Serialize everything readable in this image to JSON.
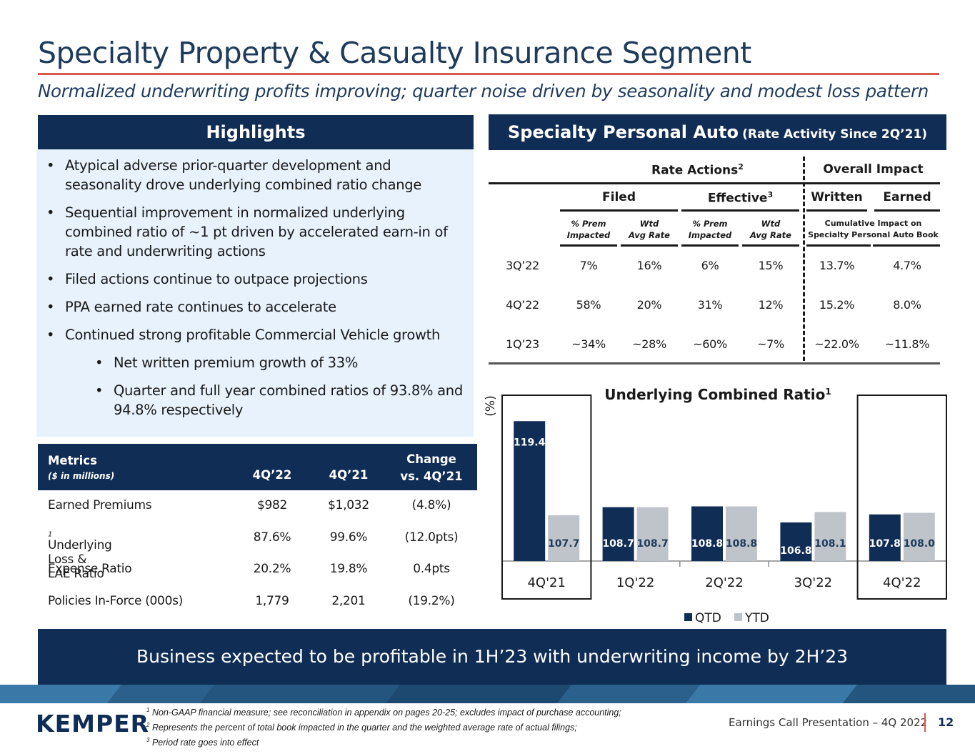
{
  "header": {
    "title": "Specialty Property & Casualty Insurance Segment",
    "subtitle": "Normalized underwriting profits improving; quarter noise driven by seasonality and modest loss pattern"
  },
  "highlights": {
    "heading": "Highlights",
    "items": [
      "Atypical adverse prior-quarter development and seasonality drove underlying combined ratio change",
      "Sequential improvement in normalized underlying combined ratio of ~1 pt driven by accelerated earn-in of rate and underwriting actions",
      "Filed actions continue to outpace projections",
      "PPA earned rate continues to accelerate",
      "Continued strong profitable Commercial Vehicle growth"
    ],
    "sub_items": [
      "Net written premium growth of 33%",
      "Quarter and full year combined ratios of 93.8% and 94.8% respectively"
    ]
  },
  "metrics": {
    "head_label": "Metrics",
    "head_sub": "($ in millions)",
    "col1": "4Q’22",
    "col2": "4Q’21",
    "col3_line1": "Change",
    "col3_line2": "vs. 4Q’21",
    "rows": [
      {
        "label": "Earned Premiums",
        "sup": "",
        "v1": "$982",
        "v2": "$1,032",
        "v3": "(4.8%)"
      },
      {
        "label": "Underlying Loss & LAE Ratio",
        "sup": "1",
        "v1": "87.6%",
        "v2": "99.6%",
        "v3": "(12.0pts)"
      },
      {
        "label": "Expense Ratio",
        "sup": "",
        "v1": "20.2%",
        "v2": "19.8%",
        "v3": "0.4pts"
      },
      {
        "label": "Policies In-Force (000s)",
        "sup": "",
        "v1": "1,779",
        "v2": "2,201",
        "v3": "(19.2%)"
      }
    ]
  },
  "spa": {
    "heading": "Specialty Personal Auto",
    "heading_small": "(Rate Activity Since 2Q’21)",
    "rate_actions": "Rate Actions",
    "rate_actions_sup": "2",
    "overall_impact": "Overall Impact",
    "filed": "Filed",
    "effective": "Effective",
    "effective_sup": "3",
    "written": "Written",
    "earned": "Earned",
    "sub_prem_1": "% Prem",
    "sub_prem_2": "Impacted",
    "sub_wtd_1": "Wtd",
    "sub_wtd_2": "Avg Rate",
    "cum_1": "Cumulative Impact on",
    "cum_2": "Specialty Personal Auto Book",
    "rows": [
      {
        "q": "3Q’22",
        "fp": "7%",
        "fw": "16%",
        "ep": "6%",
        "ew": "15%",
        "wr": "13.7%",
        "ea": "4.7%"
      },
      {
        "q": "4Q’22",
        "fp": "58%",
        "fw": "20%",
        "ep": "31%",
        "ew": "12%",
        "wr": "15.2%",
        "ea": "8.0%"
      },
      {
        "q": "1Q’23",
        "fp": "~34%",
        "fw": "~28%",
        "ep": "~60%",
        "ew": "~7%",
        "wr": "~22.0%",
        "ea": "~11.8%"
      }
    ]
  },
  "chart_data": {
    "type": "bar",
    "title": "Underlying Combined Ratio",
    "title_sup": "1",
    "ylabel": "(%)",
    "categories": [
      "4Q'21",
      "1Q'22",
      "2Q'22",
      "3Q'22",
      "4Q'22"
    ],
    "series": [
      {
        "name": "QTD",
        "color": "#102d56",
        "values": [
          119.4,
          108.7,
          108.8,
          106.8,
          107.8
        ]
      },
      {
        "name": "YTD",
        "color": "#bfc4cb",
        "values": [
          107.7,
          108.7,
          108.8,
          108.1,
          108.0
        ]
      }
    ],
    "ylim": [
      102,
      122
    ],
    "highlighted_categories": [
      "4Q'21",
      "4Q'22"
    ],
    "legend": "bottom"
  },
  "banner": {
    "text": "Business expected to be profitable in 1H’23 with underwriting income by 2H’23"
  },
  "footer": {
    "logo": "KEMPER",
    "notes": [
      {
        "sup": "1",
        "text": "Non-GAAP financial measure; see reconciliation in appendix on pages 20-25; excludes impact of purchase accounting;"
      },
      {
        "sup": "2",
        "text": "Represents the percent of total book impacted in the quarter and the weighted average rate of actual filings;"
      },
      {
        "sup": "3",
        "text": "Period rate goes into effect"
      }
    ],
    "presentation": "Earnings Call Presentation – 4Q 2022",
    "page": "12"
  },
  "colors": {
    "navy": "#102d56",
    "accent_red": "#d9594c",
    "light_blue_panel": "#e7f2fc",
    "ytd_gray": "#bfc4cb"
  }
}
